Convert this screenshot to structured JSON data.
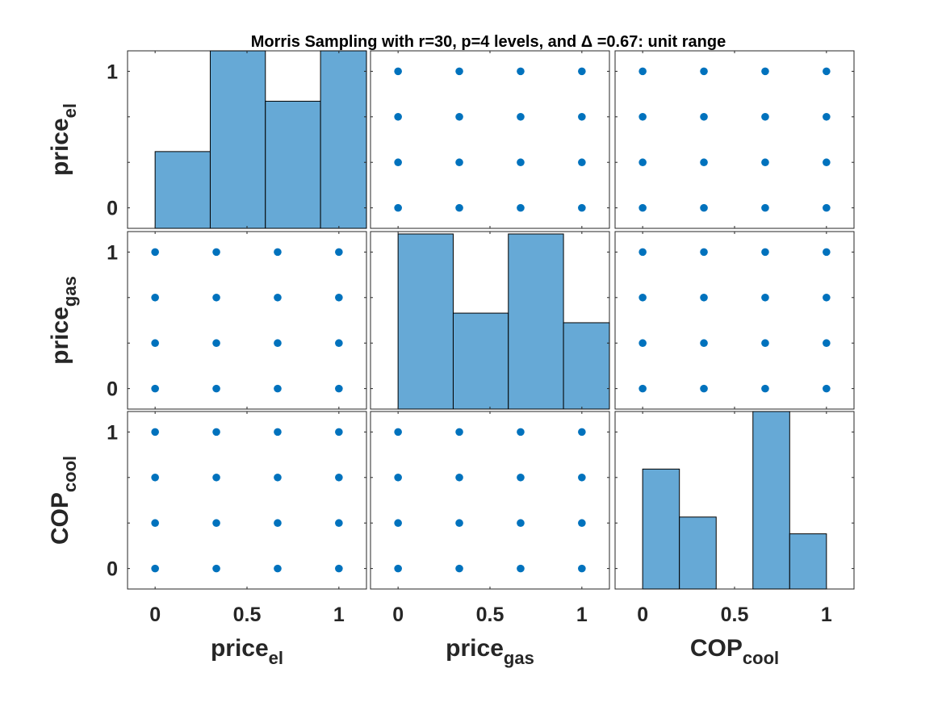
{
  "title": "Morris Sampling with r=30, p=4 levels, and Δ =0.67: unit range",
  "colors": {
    "bar_fill": "#66a9d6",
    "bar_edge": "#000000",
    "marker": "#0072bd",
    "axes": "#262626"
  },
  "chart_data": {
    "type": "scatter-matrix",
    "variables": [
      {
        "base": "price",
        "sub": "el"
      },
      {
        "base": "price",
        "sub": "gas"
      },
      {
        "base": "COP",
        "sub": "cool"
      }
    ],
    "axis_range": [
      -0.15,
      1.15
    ],
    "hist_y_max": 0.74,
    "ticks": [
      0,
      0.5,
      1
    ],
    "tick_labels": [
      "0",
      "0.5",
      "1"
    ],
    "levels": [
      0,
      0.3333,
      0.6667,
      1
    ],
    "grid": false,
    "histograms": [
      {
        "variable": "price_el",
        "bins": [
          {
            "from": 0.0,
            "to": 0.3,
            "count": 0.32
          },
          {
            "from": 0.3,
            "to": 0.6,
            "count": 0.76
          },
          {
            "from": 0.6,
            "to": 0.9,
            "count": 0.53
          },
          {
            "from": 0.9,
            "to": 1.2,
            "count": 0.76
          }
        ]
      },
      {
        "variable": "price_gas",
        "bins": [
          {
            "from": 0.0,
            "to": 0.3,
            "count": 0.73
          },
          {
            "from": 0.3,
            "to": 0.6,
            "count": 0.4
          },
          {
            "from": 0.6,
            "to": 0.9,
            "count": 0.73
          },
          {
            "from": 0.9,
            "to": 1.2,
            "count": 0.36
          }
        ]
      },
      {
        "variable": "COP_cool",
        "bins": [
          {
            "from": 0.0,
            "to": 0.2,
            "count": 0.5
          },
          {
            "from": 0.2,
            "to": 0.4,
            "count": 0.3
          },
          {
            "from": 0.6,
            "to": 0.8,
            "count": 0.76
          },
          {
            "from": 0.8,
            "to": 1.0,
            "count": 0.23
          }
        ]
      }
    ]
  }
}
